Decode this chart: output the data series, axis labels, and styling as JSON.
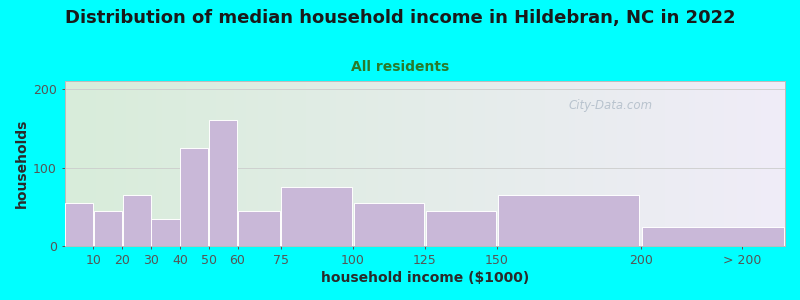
{
  "title": "Distribution of median household income in Hildebran, NC in 2022",
  "subtitle": "All residents",
  "xlabel": "household income ($1000)",
  "ylabel": "households",
  "background_outer": "#00FFFF",
  "background_inner_left": "#d8edda",
  "background_inner_right": "#f0ecf8",
  "bar_color": "#c9b8d8",
  "bar_edge_color": "#ffffff",
  "categories": [
    "10",
    "20",
    "30",
    "40",
    "50",
    "60",
    "75",
    "100",
    "125",
    "150",
    "200",
    "> 200"
  ],
  "values": [
    55,
    45,
    65,
    35,
    125,
    160,
    45,
    75,
    55,
    45,
    65,
    25
  ],
  "ylim": [
    0,
    210
  ],
  "yticks": [
    0,
    100,
    200
  ],
  "title_fontsize": 13,
  "subtitle_fontsize": 10,
  "axis_label_fontsize": 10,
  "tick_fontsize": 9,
  "title_color": "#1a1a1a",
  "subtitle_color": "#2a7a2a",
  "axis_label_color": "#2a2a2a",
  "tick_color": "#555555",
  "watermark_text": "City-Data.com",
  "watermark_color": "#b0bcc8",
  "grid_color": "#cccccc",
  "bar_left_edges": [
    0,
    10,
    20,
    30,
    40,
    50,
    60,
    75,
    100,
    125,
    150,
    200
  ],
  "bar_right_edges": [
    10,
    20,
    30,
    40,
    50,
    60,
    75,
    100,
    125,
    150,
    200,
    250
  ]
}
